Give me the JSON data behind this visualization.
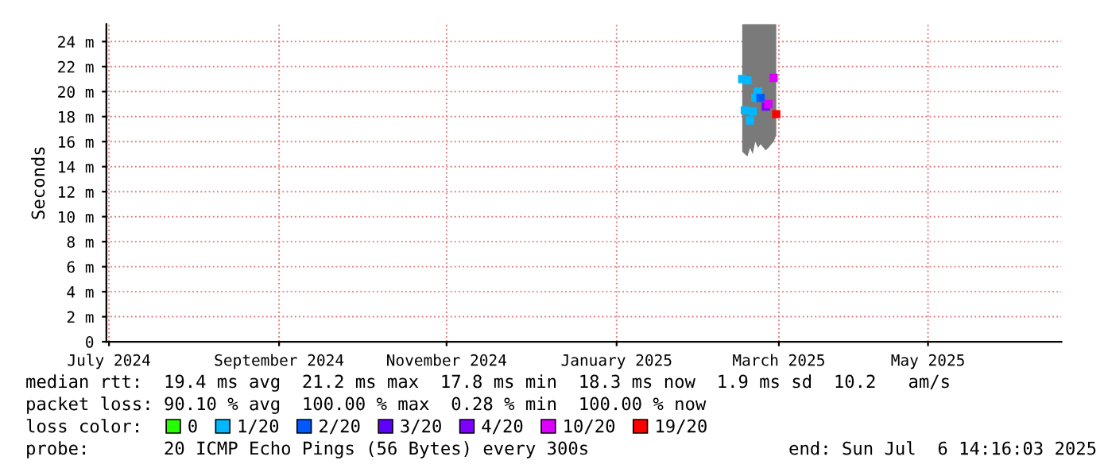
{
  "chart_data": {
    "type": "scatter",
    "ylabel": "Seconds",
    "legend_title": "loss color:",
    "legend": "bottom",
    "grid": true,
    "xlim": [
      "2024-07-06",
      "2025-07-06"
    ],
    "xticks": [
      {
        "value": "2024-07-07",
        "label": "July 2024"
      },
      {
        "value": "2024-09-10",
        "label": "September 2024"
      },
      {
        "value": "2024-11-13",
        "label": "November 2024"
      },
      {
        "value": "2025-01-17",
        "label": "January 2025"
      },
      {
        "value": "2025-03-20",
        "label": "March 2025"
      },
      {
        "value": "2025-05-16",
        "label": "May 2025"
      }
    ],
    "ylim": [
      0,
      25.4
    ],
    "yticks": [
      0,
      {
        "value": 2,
        "label": "2 m"
      },
      {
        "value": 4,
        "label": "4 m"
      },
      {
        "value": 6,
        "label": "6 m"
      },
      {
        "value": 8,
        "label": "8 m"
      },
      {
        "value": 10,
        "label": "10 m"
      },
      {
        "value": 12,
        "label": "12 m"
      },
      {
        "value": 14,
        "label": "14 m"
      },
      {
        "value": 16,
        "label": "16 m"
      },
      {
        "value": 18,
        "label": "18 m"
      },
      {
        "value": 20,
        "label": "20 m"
      },
      {
        "value": 22,
        "label": "22 m"
      },
      {
        "value": 24,
        "label": "24 m"
      }
    ],
    "series": [
      {
        "type": "line",
        "color": "#7a7a7a",
        "values": [
          null,
          null,
          null,
          null,
          null,
          null,
          null,
          null,
          null,
          null,
          null,
          null
        ],
        "x": [
          "2025-03-06",
          "2025-03-07",
          "2025-03-08",
          "2025-03-09",
          "2025-03-10",
          "2025-03-11",
          "2025-03-12",
          "2025-03-13",
          "2025-03-15",
          "2025-03-16",
          "2025-03-18",
          "2025-03-19"
        ],
        "upper": [
          25.4,
          25.4,
          25.4,
          25.4,
          25.4,
          25.4,
          25.4,
          25.4,
          25.4,
          25.4,
          25.4,
          25.4
        ],
        "lower": [
          15.2,
          15.0,
          14.8,
          15.5,
          15.0,
          16.0,
          15.5,
          15.8,
          15.3,
          15.5,
          16.0,
          16.5
        ]
      },
      {
        "name": "0",
        "color": "#26ff00"
      },
      {
        "name": "1/20",
        "color": "#00b8ff",
        "marker": "square",
        "x": [
          "2025-03-06",
          "2025-03-07",
          "2025-03-08",
          "2025-03-09",
          "2025-03-10",
          "2025-03-11",
          "2025-03-12"
        ],
        "values": [
          21.0,
          18.5,
          20.9,
          17.7,
          18.4,
          19.5,
          20.0
        ]
      },
      {
        "name": "2/20",
        "color": "#0059ff",
        "marker": "square",
        "x": [
          "2025-03-13"
        ],
        "values": [
          19.5
        ]
      },
      {
        "name": "3/20",
        "color": "#5e00ff"
      },
      {
        "name": "4/20",
        "color": "#7e00ff",
        "marker": "square",
        "x": [
          "2025-03-15"
        ],
        "values": [
          18.8
        ]
      },
      {
        "name": "10/20",
        "color": "#dd00ff",
        "marker": "square",
        "x": [
          "2025-03-16",
          "2025-03-18"
        ],
        "values": [
          19.0,
          21.1
        ]
      },
      {
        "name": "19/20",
        "color": "#ff0000",
        "marker": "square",
        "x": [
          "2025-03-19"
        ],
        "values": [
          18.2
        ]
      }
    ],
    "annotations": [
      "median rtt:  19.4 ms avg  21.2 ms max  17.8 ms min  18.3 ms now  1.9 ms sd  10.2   am/s",
      "packet loss: 90.10 % avg  100.00 % max  0.28 % min  100.00 % now",
      "probe:       20 ICMP Echo Pings (56 Bytes) every 300s",
      "end: Sun Jul  6 14:16:03 2025"
    ]
  }
}
